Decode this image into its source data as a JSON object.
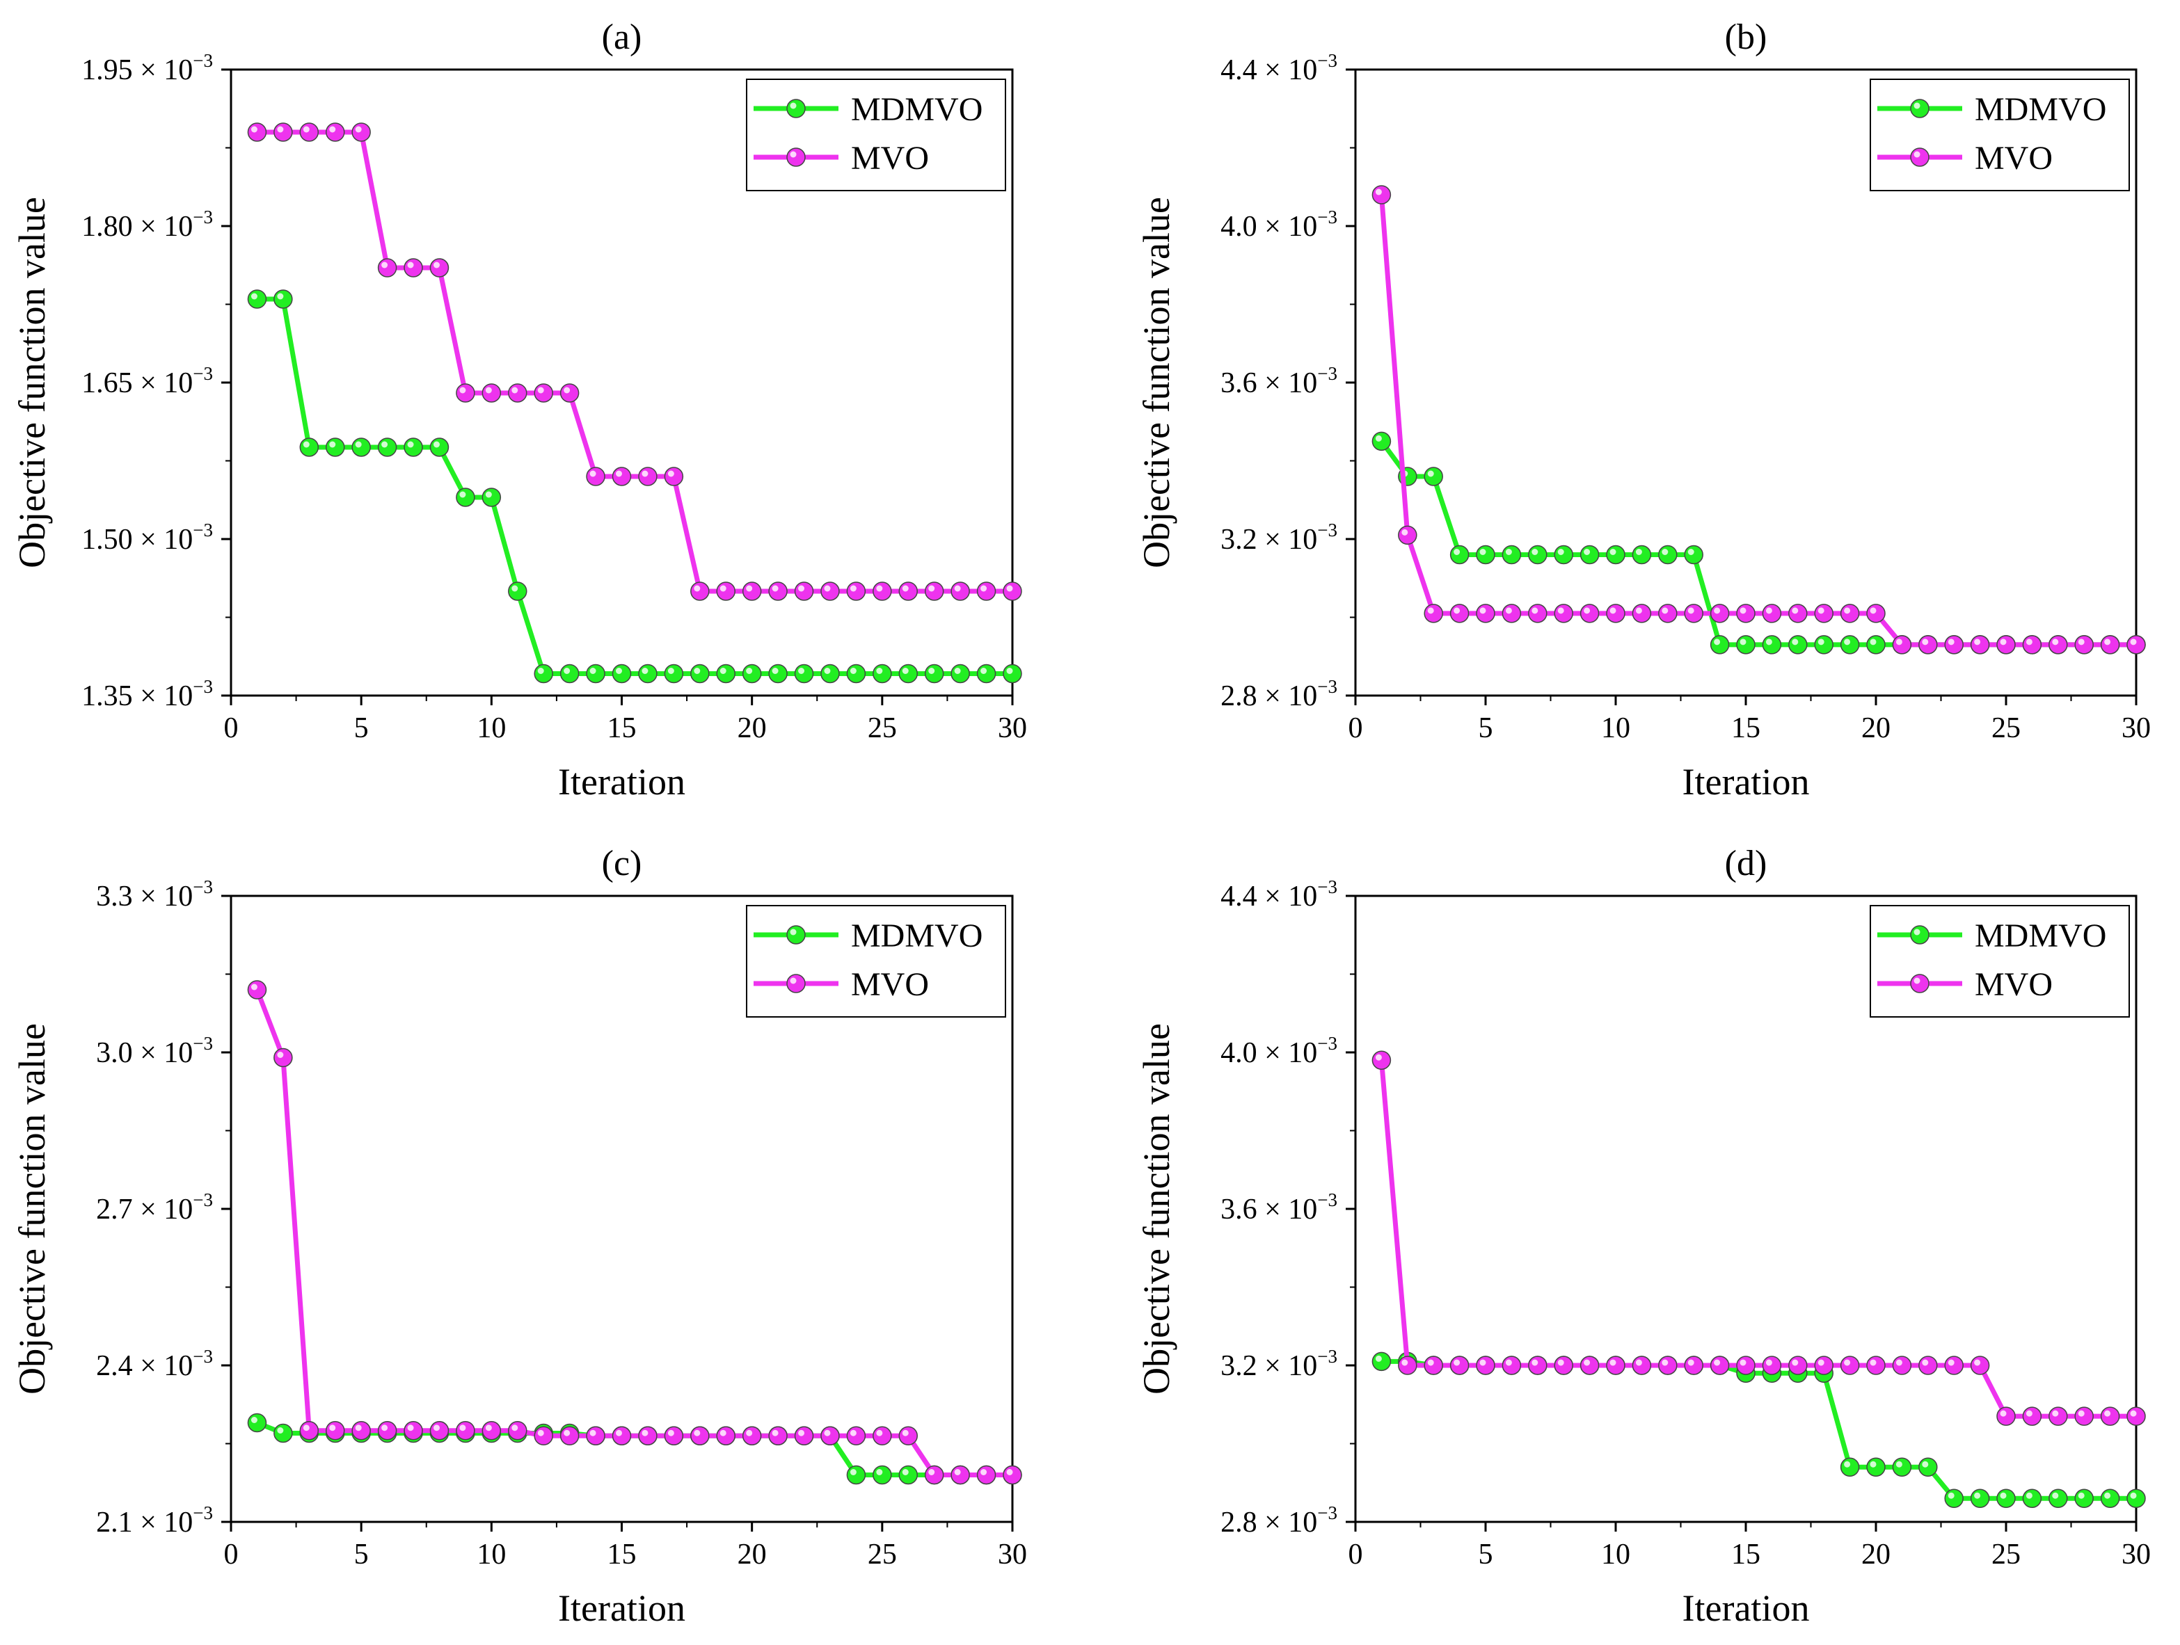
{
  "chart_data": [
    {
      "type": "line",
      "title": "(a)",
      "xlabel": "Iteration",
      "ylabel": "Objective function value",
      "xlim": [
        0,
        30
      ],
      "ylim": [
        0.00135,
        0.00195
      ],
      "xticks": [
        0,
        5,
        10,
        15,
        20,
        25,
        30
      ],
      "xtick_labels": [
        "0",
        "5",
        "10",
        "15",
        "20",
        "25",
        "30"
      ],
      "yticks": [
        0.00135,
        0.0015,
        0.00165,
        0.0018,
        0.00195
      ],
      "ytick_labels": [
        {
          "mant": "1.35 × 10",
          "exp": "−3"
        },
        {
          "mant": "1.50 × 10",
          "exp": "−3"
        },
        {
          "mant": "1.65 × 10",
          "exp": "−3"
        },
        {
          "mant": "1.80 × 10",
          "exp": "−3"
        },
        {
          "mant": "1.95 × 10",
          "exp": "−3"
        }
      ],
      "legend_position": "top-right",
      "x": [
        1,
        2,
        3,
        4,
        5,
        6,
        7,
        8,
        9,
        10,
        11,
        12,
        13,
        14,
        15,
        16,
        17,
        18,
        19,
        20,
        21,
        22,
        23,
        24,
        25,
        26,
        27,
        28,
        29,
        30
      ],
      "series": [
        {
          "name": "MDMVO",
          "color": "#22ee22",
          "values": [
            0.00173,
            0.00173,
            0.001588,
            0.001588,
            0.001588,
            0.001588,
            0.001588,
            0.001588,
            0.00154,
            0.00154,
            0.00145,
            0.001371,
            0.001371,
            0.001371,
            0.001371,
            0.001371,
            0.001371,
            0.001371,
            0.001371,
            0.001371,
            0.001371,
            0.001371,
            0.001371,
            0.001371,
            0.001371,
            0.001371,
            0.001371,
            0.001371,
            0.001371,
            0.001371
          ]
        },
        {
          "name": "MVO",
          "color": "#ee33ee",
          "values": [
            0.00189,
            0.00189,
            0.00189,
            0.00189,
            0.00189,
            0.00176,
            0.00176,
            0.00176,
            0.00164,
            0.00164,
            0.00164,
            0.00164,
            0.00164,
            0.00156,
            0.00156,
            0.00156,
            0.00156,
            0.00145,
            0.00145,
            0.00145,
            0.00145,
            0.00145,
            0.00145,
            0.00145,
            0.00145,
            0.00145,
            0.00145,
            0.00145,
            0.00145,
            0.00145
          ]
        }
      ]
    },
    {
      "type": "line",
      "title": "(b)",
      "xlabel": "Iteration",
      "ylabel": "Objective function value",
      "xlim": [
        0,
        30
      ],
      "ylim": [
        0.0028,
        0.0044
      ],
      "xticks": [
        0,
        5,
        10,
        15,
        20,
        25,
        30
      ],
      "xtick_labels": [
        "0",
        "5",
        "10",
        "15",
        "20",
        "25",
        "30"
      ],
      "yticks": [
        0.0028,
        0.0032,
        0.0036,
        0.004,
        0.0044
      ],
      "ytick_labels": [
        {
          "mant": "2.8 × 10",
          "exp": "−3"
        },
        {
          "mant": "3.2 × 10",
          "exp": "−3"
        },
        {
          "mant": "3.6 × 10",
          "exp": "−3"
        },
        {
          "mant": "4.0 × 10",
          "exp": "−3"
        },
        {
          "mant": "4.4 × 10",
          "exp": "−3"
        }
      ],
      "legend_position": "top-right",
      "x": [
        1,
        2,
        3,
        4,
        5,
        6,
        7,
        8,
        9,
        10,
        11,
        12,
        13,
        14,
        15,
        16,
        17,
        18,
        19,
        20,
        21,
        22,
        23,
        24,
        25,
        26,
        27,
        28,
        29,
        30
      ],
      "series": [
        {
          "name": "MDMVO",
          "color": "#22ee22",
          "values": [
            0.00345,
            0.00336,
            0.00336,
            0.00316,
            0.00316,
            0.00316,
            0.00316,
            0.00316,
            0.00316,
            0.00316,
            0.00316,
            0.00316,
            0.00316,
            0.00293,
            0.00293,
            0.00293,
            0.00293,
            0.00293,
            0.00293,
            0.00293,
            0.00293,
            0.00293,
            0.00293,
            0.00293,
            0.00293,
            0.00293,
            0.00293,
            0.00293,
            0.00293,
            0.00293
          ]
        },
        {
          "name": "MVO",
          "color": "#ee33ee",
          "values": [
            0.00408,
            0.00321,
            0.00301,
            0.00301,
            0.00301,
            0.00301,
            0.00301,
            0.00301,
            0.00301,
            0.00301,
            0.00301,
            0.00301,
            0.00301,
            0.00301,
            0.00301,
            0.00301,
            0.00301,
            0.00301,
            0.00301,
            0.00301,
            0.00293,
            0.00293,
            0.00293,
            0.00293,
            0.00293,
            0.00293,
            0.00293,
            0.00293,
            0.00293,
            0.00293
          ]
        }
      ]
    },
    {
      "type": "line",
      "title": "(c)",
      "xlabel": "Iteration",
      "ylabel": "Objective function value",
      "xlim": [
        0,
        30
      ],
      "ylim": [
        0.0021,
        0.0033
      ],
      "xticks": [
        0,
        5,
        10,
        15,
        20,
        25,
        30
      ],
      "xtick_labels": [
        "0",
        "5",
        "10",
        "15",
        "20",
        "25",
        "30"
      ],
      "yticks": [
        0.0021,
        0.0024,
        0.0027,
        0.003,
        0.0033
      ],
      "ytick_labels": [
        {
          "mant": "2.1 × 10",
          "exp": "−3"
        },
        {
          "mant": "2.4 × 10",
          "exp": "−3"
        },
        {
          "mant": "2.7 × 10",
          "exp": "−3"
        },
        {
          "mant": "3.0 × 10",
          "exp": "−3"
        },
        {
          "mant": "3.3 × 10",
          "exp": "−3"
        }
      ],
      "legend_position": "top-right",
      "x": [
        1,
        2,
        3,
        4,
        5,
        6,
        7,
        8,
        9,
        10,
        11,
        12,
        13,
        14,
        15,
        16,
        17,
        18,
        19,
        20,
        21,
        22,
        23,
        24,
        25,
        26,
        27,
        28,
        29,
        30
      ],
      "series": [
        {
          "name": "MDMVO",
          "color": "#22ee22",
          "values": [
            0.00229,
            0.00227,
            0.00227,
            0.00227,
            0.00227,
            0.00227,
            0.00227,
            0.00227,
            0.00227,
            0.00227,
            0.00227,
            0.00227,
            0.00227,
            0.002265,
            0.002265,
            0.002265,
            0.002265,
            0.002265,
            0.002265,
            0.002265,
            0.002265,
            0.002265,
            0.002265,
            0.00219,
            0.00219,
            0.00219,
            0.00219,
            0.00219,
            0.00219,
            0.00219
          ]
        },
        {
          "name": "MVO",
          "color": "#ee33ee",
          "values": [
            0.00312,
            0.00299,
            0.002275,
            0.002275,
            0.002275,
            0.002275,
            0.002275,
            0.002275,
            0.002275,
            0.002275,
            0.002275,
            0.002265,
            0.002265,
            0.002265,
            0.002265,
            0.002265,
            0.002265,
            0.002265,
            0.002265,
            0.002265,
            0.002265,
            0.002265,
            0.002265,
            0.002265,
            0.002265,
            0.002265,
            0.00219,
            0.00219,
            0.00219,
            0.00219
          ]
        }
      ]
    },
    {
      "type": "line",
      "title": "(d)",
      "xlabel": "Iteration",
      "ylabel": "Objective function value",
      "xlim": [
        0,
        30
      ],
      "ylim": [
        0.0028,
        0.0044
      ],
      "xticks": [
        0,
        5,
        10,
        15,
        20,
        25,
        30
      ],
      "xtick_labels": [
        "0",
        "5",
        "10",
        "15",
        "20",
        "25",
        "30"
      ],
      "yticks": [
        0.0028,
        0.0032,
        0.0036,
        0.004,
        0.0044
      ],
      "ytick_labels": [
        {
          "mant": "2.8 × 10",
          "exp": "−3"
        },
        {
          "mant": "3.2 × 10",
          "exp": "−3"
        },
        {
          "mant": "3.6 × 10",
          "exp": "−3"
        },
        {
          "mant": "4.0 × 10",
          "exp": "−3"
        },
        {
          "mant": "4.4 × 10",
          "exp": "−3"
        }
      ],
      "legend_position": "top-right",
      "x": [
        1,
        2,
        3,
        4,
        5,
        6,
        7,
        8,
        9,
        10,
        11,
        12,
        13,
        14,
        15,
        16,
        17,
        18,
        19,
        20,
        21,
        22,
        23,
        24,
        25,
        26,
        27,
        28,
        29,
        30
      ],
      "series": [
        {
          "name": "MDMVO",
          "color": "#22ee22",
          "values": [
            0.00321,
            0.00321,
            0.0032,
            0.0032,
            0.0032,
            0.0032,
            0.0032,
            0.0032,
            0.0032,
            0.0032,
            0.0032,
            0.0032,
            0.0032,
            0.0032,
            0.00318,
            0.00318,
            0.00318,
            0.00318,
            0.00294,
            0.00294,
            0.00294,
            0.00294,
            0.00286,
            0.00286,
            0.00286,
            0.00286,
            0.00286,
            0.00286,
            0.00286,
            0.00286
          ]
        },
        {
          "name": "MVO",
          "color": "#ee33ee",
          "values": [
            0.00398,
            0.0032,
            0.0032,
            0.0032,
            0.0032,
            0.0032,
            0.0032,
            0.0032,
            0.0032,
            0.0032,
            0.0032,
            0.0032,
            0.0032,
            0.0032,
            0.0032,
            0.0032,
            0.0032,
            0.0032,
            0.0032,
            0.0032,
            0.0032,
            0.0032,
            0.0032,
            0.0032,
            0.00307,
            0.00307,
            0.00307,
            0.00307,
            0.00307,
            0.00307
          ]
        }
      ]
    }
  ]
}
